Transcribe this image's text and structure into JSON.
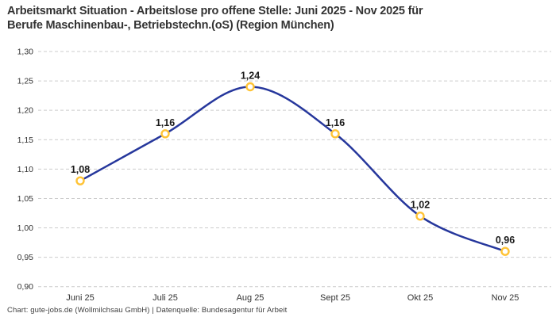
{
  "header": {
    "title_line1": "Arbeitsmarkt Situation - Arbeitslose pro offene Stelle: Juni 2025 - Nov 2025 für",
    "title_line2": "Berufe Maschinenbau-, Betriebstechn.(oS) (Region München)"
  },
  "footer": {
    "credit": "Chart: gute-jobs.de (Wollmilchsau GmbH) | Datenquelle: Bundesagentur für Arbeit"
  },
  "chart_data": {
    "type": "line",
    "title": "Arbeitsmarkt Situation - Arbeitslose pro offene Stelle: Juni 2025 - Nov 2025 für Berufe Maschinenbau-, Betriebstechn.(oS) (Region München)",
    "categories": [
      "Juni 25",
      "Juli 25",
      "Aug 25",
      "Sept 25",
      "Okt 25",
      "Nov 25"
    ],
    "values": [
      1.08,
      1.16,
      1.24,
      1.16,
      1.02,
      0.96
    ],
    "value_labels": [
      "1,08",
      "1,16",
      "1,24",
      "1,16",
      "1,02",
      "0,96"
    ],
    "y_ticks": [
      1.3,
      1.25,
      1.2,
      1.15,
      1.1,
      1.05,
      1.0,
      0.95,
      0.9
    ],
    "y_tick_labels": [
      "1,30",
      "1,25",
      "1,20",
      "1,15",
      "1,10",
      "1,05",
      "1,00",
      "0,95",
      "0,90"
    ],
    "ylim": [
      0.9,
      1.3
    ],
    "xlabel": "",
    "ylabel": "",
    "smooth": true,
    "grid": "horizontal-dashed",
    "legend": "none",
    "line_color": "#26379C",
    "marker_stroke_color": "#FFC335",
    "marker_fill_color": "#FFFFFF",
    "grid_color": "#CCCCCC",
    "tick_label_color": "#333333",
    "value_label_color": "#1A1A1A"
  }
}
